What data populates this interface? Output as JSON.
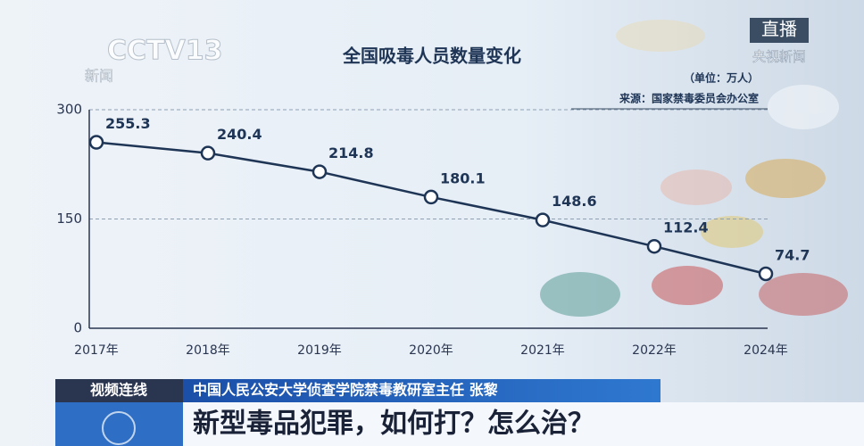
{
  "chart_data": {
    "type": "line",
    "title": "全国吸毒人员数量变化",
    "unit": "（单位：万人）",
    "source": "来源：国家禁毒委员会办公室",
    "categories": [
      "2017年",
      "2018年",
      "2019年",
      "2020年",
      "2021年",
      "2022年",
      "2024年"
    ],
    "values": [
      255.3,
      240.4,
      214.8,
      180.1,
      148.6,
      112.4,
      74.7
    ],
    "color": "#1f3556",
    "ylim": [
      0,
      300
    ],
    "yticks": [
      0,
      150,
      300
    ],
    "grid": true
  },
  "broadcast": {
    "logo": "CCTV13",
    "logo_sub": "新闻",
    "live": "直播",
    "live_sub": "央视新闻",
    "tag": "视频连线",
    "guest": "中国人民公安大学侦查学院禁毒教研室主任 张黎",
    "headline": "新型毒品犯罪，如何打？怎么治？"
  }
}
